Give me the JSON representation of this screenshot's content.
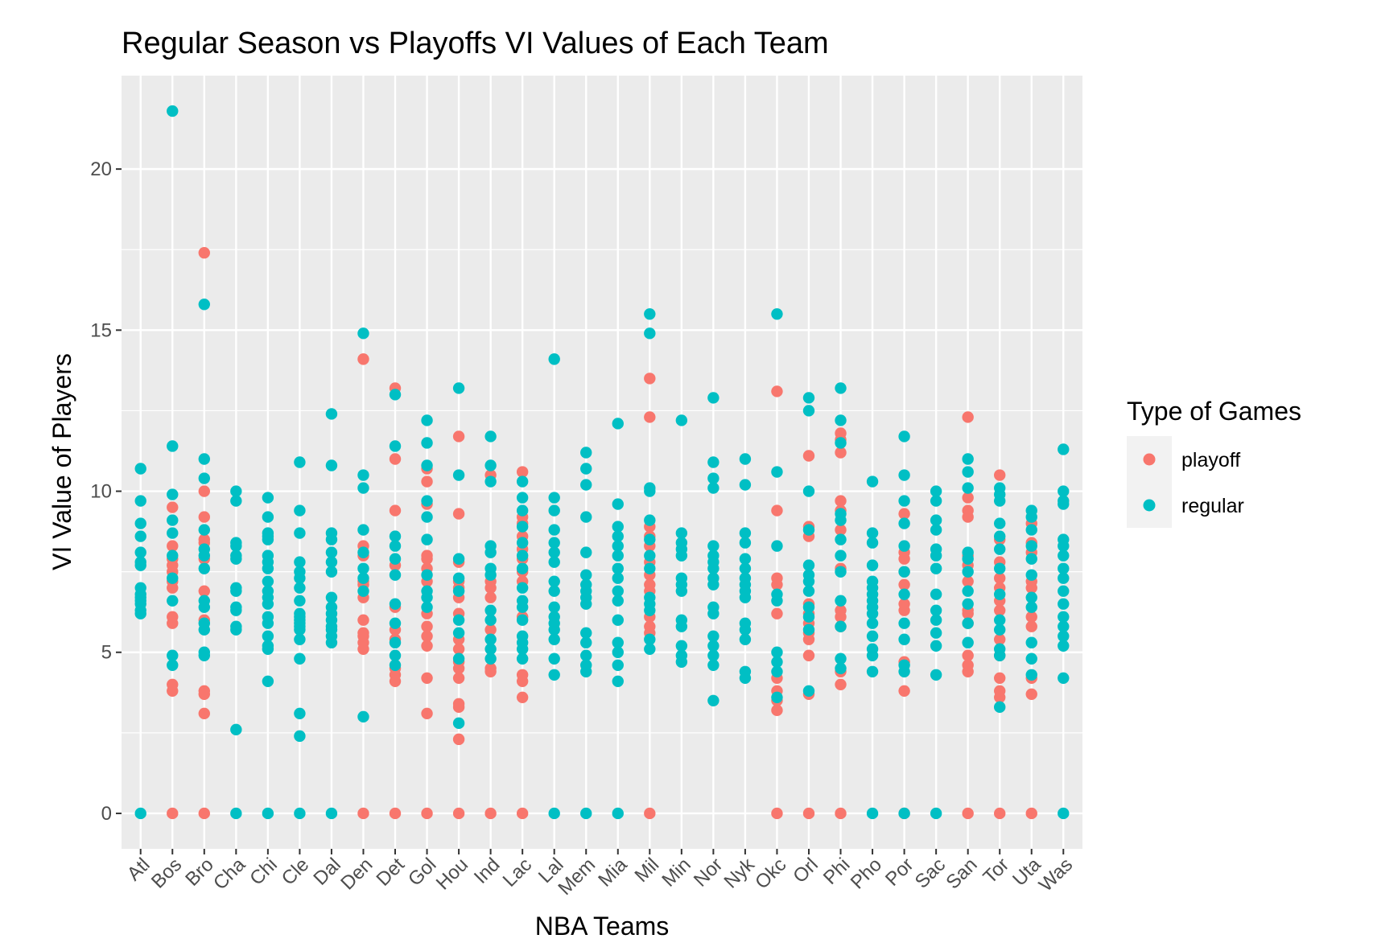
{
  "chart_data": {
    "type": "scatter",
    "title": "Regular Season vs Playoffs VI Values of Each Team",
    "xlabel": "NBA Teams",
    "ylabel": "VI Value of Players",
    "categories": [
      "Atl",
      "Bos",
      "Bro",
      "Cha",
      "Chi",
      "Cle",
      "Dal",
      "Den",
      "Det",
      "Gol",
      "Hou",
      "Ind",
      "Lac",
      "Lal",
      "Mem",
      "Mia",
      "Mil",
      "Min",
      "Nor",
      "Nyk",
      "Okc",
      "Orl",
      "Phi",
      "Pho",
      "Por",
      "Sac",
      "San",
      "Tor",
      "Uta",
      "Was"
    ],
    "ylim": [
      -1.1,
      22.9
    ],
    "yticks": [
      0,
      5,
      10,
      15,
      20
    ],
    "grid": true,
    "legend": {
      "title": "Type of Games",
      "placement": "right"
    },
    "series": [
      {
        "name": "playoff",
        "color": "#F8766D",
        "points": {
          "Bos": [
            0,
            3.8,
            4.0,
            5.9,
            6.1,
            7.0,
            7.2,
            7.5,
            7.7,
            7.9,
            8.3,
            9.5
          ],
          "Bro": [
            0,
            3.1,
            3.7,
            3.8,
            6.0,
            6.9,
            7.9,
            8.4,
            8.5,
            9.2,
            10.0,
            17.4
          ],
          "Den": [
            0,
            5.1,
            5.3,
            5.5,
            5.6,
            6.0,
            6.7,
            7.1,
            7.2,
            8.0,
            8.3,
            14.1
          ],
          "Det": [
            0,
            4.1,
            4.3,
            4.5,
            5.4,
            5.7,
            6.4,
            7.7,
            9.4,
            11.0,
            13.2
          ],
          "Gol": [
            0,
            3.1,
            4.2,
            5.2,
            5.5,
            5.8,
            6.2,
            7.2,
            7.6,
            7.9,
            8.0,
            9.6,
            10.3,
            10.7
          ],
          "Hou": [
            0,
            2.3,
            3.3,
            3.4,
            4.2,
            4.5,
            4.7,
            5.1,
            5.4,
            6.2,
            6.7,
            7.0,
            7.2,
            7.8,
            9.3,
            11.7
          ],
          "Ind": [
            0,
            4.4,
            4.5,
            5.7,
            6.7,
            7.0,
            7.2,
            10.5
          ],
          "Lac": [
            0,
            3.6,
            4.1,
            4.3,
            6.1,
            7.2,
            7.5,
            7.9,
            8.2,
            8.6,
            9.0,
            9.2,
            10.6
          ],
          "Mil": [
            0,
            5.6,
            5.8,
            6.1,
            6.9,
            7.1,
            7.4,
            7.8,
            8.3,
            8.6,
            8.9,
            12.3,
            13.5
          ],
          "Okc": [
            0,
            3.2,
            3.5,
            3.8,
            4.2,
            6.2,
            7.1,
            7.3,
            9.4,
            13.1
          ],
          "Orl": [
            0,
            3.7,
            4.9,
            5.4,
            5.6,
            5.9,
            6.2,
            6.5,
            8.6,
            8.9,
            11.1
          ],
          "Phi": [
            0,
            4.0,
            4.4,
            5.8,
            6.1,
            6.3,
            7.6,
            8.8,
            9.4,
            9.7,
            11.2,
            11.6,
            11.8
          ],
          "Por": [
            0,
            3.8,
            4.7,
            6.3,
            6.5,
            7.1,
            7.5,
            7.9,
            8.1,
            9.3
          ],
          "San": [
            0,
            4.4,
            4.6,
            4.9,
            5.9,
            6.2,
            6.3,
            7.2,
            7.7,
            8.0,
            9.2,
            9.4,
            9.8,
            12.3
          ],
          "Tor": [
            0,
            3.6,
            3.8,
            4.2,
            4.9,
            5.4,
            6.3,
            6.6,
            7.0,
            7.3,
            7.8,
            8.5,
            10.5
          ],
          "Uta": [
            0,
            3.7,
            4.2,
            5.8,
            6.1,
            7.0,
            7.2,
            8.1,
            8.4,
            9.0
          ]
        }
      },
      {
        "name": "regular",
        "color": "#00BFC4",
        "points": {
          "Atl": [
            0,
            6.2,
            6.3,
            6.5,
            6.6,
            6.7,
            6.8,
            7.0,
            7.7,
            7.8,
            8.1,
            8.6,
            9.0,
            9.7,
            10.7
          ],
          "Bos": [
            4.6,
            4.9,
            6.6,
            7.3,
            8.0,
            8.7,
            9.1,
            9.9,
            11.4,
            21.8
          ],
          "Bro": [
            4.9,
            5.0,
            5.7,
            5.9,
            6.4,
            6.6,
            7.6,
            8.0,
            8.2,
            8.8,
            10.4,
            11.0,
            15.8
          ],
          "Cha": [
            0,
            2.6,
            5.7,
            5.8,
            6.3,
            6.4,
            6.9,
            7.0,
            7.9,
            8.0,
            8.3,
            8.4,
            9.7,
            10.0
          ],
          "Chi": [
            0,
            4.1,
            5.1,
            5.2,
            5.5,
            5.9,
            6.1,
            6.5,
            6.7,
            6.9,
            7.2,
            7.6,
            7.8,
            8.0,
            8.5,
            8.6,
            8.7,
            9.2,
            9.8
          ],
          "Cle": [
            0,
            2.4,
            3.1,
            4.8,
            5.4,
            5.7,
            5.8,
            5.9,
            6.0,
            6.1,
            6.2,
            6.6,
            7.0,
            7.3,
            7.5,
            7.8,
            8.7,
            9.4,
            10.9
          ],
          "Dal": [
            0,
            5.3,
            5.5,
            5.7,
            5.8,
            6.0,
            6.2,
            6.4,
            6.7,
            7.5,
            7.8,
            8.1,
            8.5,
            8.7,
            10.8,
            12.4
          ],
          "Den": [
            3.0,
            6.9,
            7.3,
            7.6,
            8.1,
            8.8,
            10.1,
            10.5,
            14.9
          ],
          "Det": [
            4.6,
            4.9,
            5.3,
            5.9,
            6.5,
            7.4,
            7.9,
            8.3,
            8.6,
            11.4,
            13.0
          ],
          "Gol": [
            6.4,
            6.7,
            6.9,
            7.4,
            8.5,
            9.2,
            9.7,
            10.8,
            11.5,
            12.2
          ],
          "Hou": [
            2.8,
            4.8,
            5.6,
            6.0,
            6.9,
            7.3,
            7.9,
            10.5,
            13.2
          ],
          "Ind": [
            4.8,
            5.1,
            5.4,
            6.0,
            6.3,
            7.4,
            7.6,
            8.1,
            8.3,
            10.3,
            10.8,
            11.7
          ],
          "Lac": [
            4.8,
            5.1,
            5.3,
            5.5,
            6.0,
            6.4,
            6.6,
            7.0,
            7.6,
            8.0,
            8.4,
            8.9,
            9.4,
            9.8,
            10.3
          ],
          "Lal": [
            0,
            4.3,
            4.8,
            5.4,
            5.7,
            5.9,
            6.1,
            6.4,
            6.9,
            7.2,
            7.8,
            8.1,
            8.4,
            8.8,
            9.4,
            9.8,
            14.1
          ],
          "Mem": [
            0,
            4.4,
            4.6,
            4.9,
            5.3,
            5.6,
            6.5,
            6.7,
            6.9,
            7.1,
            7.4,
            8.1,
            9.2,
            10.2,
            10.7,
            11.2
          ],
          "Mia": [
            0,
            4.1,
            4.6,
            5.0,
            5.3,
            6.0,
            6.6,
            6.9,
            7.3,
            7.6,
            8.0,
            8.3,
            8.6,
            8.9,
            9.6,
            12.1
          ],
          "Mil": [
            5.1,
            5.4,
            6.3,
            6.5,
            6.7,
            7.6,
            8.0,
            8.5,
            9.1,
            10.0,
            10.1,
            14.9,
            15.5
          ],
          "Min": [
            4.7,
            4.9,
            5.2,
            5.8,
            6.0,
            6.9,
            7.1,
            7.3,
            8.0,
            8.2,
            8.4,
            8.7,
            12.2
          ],
          "Nor": [
            3.5,
            4.6,
            4.9,
            5.2,
            5.5,
            6.2,
            6.4,
            7.1,
            7.3,
            7.6,
            7.8,
            8.0,
            8.3,
            10.1,
            10.4,
            10.9,
            12.9
          ],
          "Nyk": [
            4.2,
            4.4,
            5.4,
            5.7,
            5.9,
            6.7,
            6.9,
            7.1,
            7.3,
            7.6,
            7.9,
            8.4,
            8.7,
            10.2,
            11.0
          ],
          "Okc": [
            3.6,
            4.4,
            4.7,
            5.0,
            6.6,
            6.8,
            8.3,
            10.6,
            15.5
          ],
          "Orl": [
            3.8,
            5.7,
            6.1,
            6.4,
            6.9,
            7.2,
            7.4,
            7.7,
            8.8,
            10.0,
            12.5,
            12.9
          ],
          "Phi": [
            4.5,
            4.8,
            5.8,
            6.6,
            7.5,
            8.0,
            8.5,
            9.1,
            9.3,
            11.5,
            12.2,
            13.2
          ],
          "Pho": [
            0,
            4.4,
            4.9,
            5.1,
            5.5,
            5.9,
            6.2,
            6.4,
            6.6,
            6.8,
            7.0,
            7.2,
            7.7,
            8.4,
            8.7,
            10.3
          ],
          "Por": [
            0,
            4.4,
            4.6,
            5.4,
            5.9,
            6.8,
            7.5,
            8.3,
            9.0,
            9.7,
            10.5,
            11.7
          ],
          "Sac": [
            0,
            4.3,
            5.2,
            5.6,
            6.0,
            6.3,
            6.8,
            7.6,
            8.0,
            8.2,
            8.8,
            9.1,
            9.7,
            10.0
          ],
          "San": [
            5.3,
            5.9,
            6.5,
            6.9,
            7.5,
            7.9,
            8.1,
            10.1,
            10.6,
            11.0
          ],
          "Tor": [
            3.3,
            4.9,
            5.1,
            5.7,
            6.0,
            6.8,
            7.6,
            8.2,
            8.6,
            9.0,
            9.7,
            9.9,
            10.1
          ],
          "Uta": [
            4.3,
            4.8,
            5.3,
            6.4,
            6.7,
            7.4,
            7.9,
            8.3,
            8.8,
            9.2,
            9.4
          ],
          "Was": [
            0,
            4.2,
            5.2,
            5.5,
            5.8,
            6.1,
            6.5,
            6.9,
            7.3,
            7.6,
            8.0,
            8.3,
            8.5,
            9.6,
            9.7,
            10.0,
            11.3
          ]
        }
      }
    ]
  }
}
